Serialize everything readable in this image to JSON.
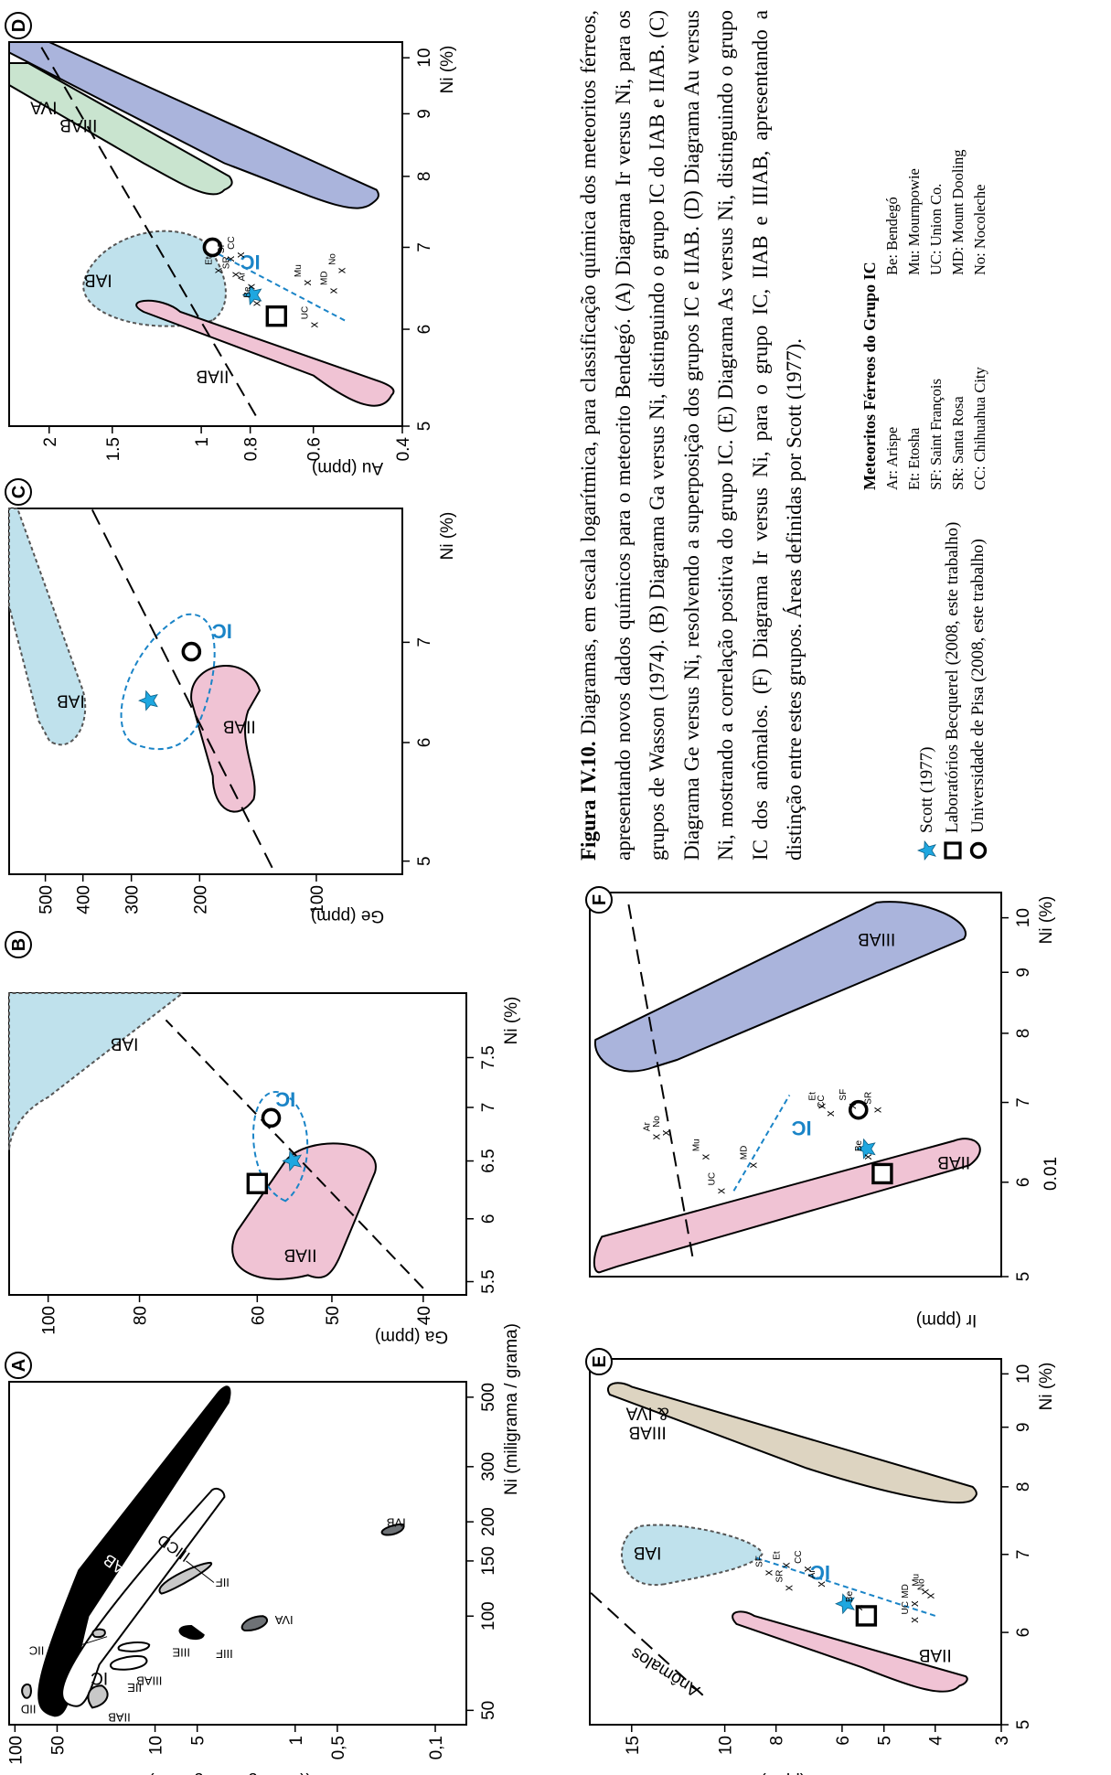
{
  "colors": {
    "iab_dark": "#000000",
    "iab_light": "#bfe1ec",
    "iiab": "#f0c3d4",
    "iiiab": "#aab4dc",
    "iva": "#c9e4cf",
    "iiiab_iva": "#ddd4c1",
    "ic": "#1a84c7",
    "star": "#1ea7e0",
    "grey": "#c8c8c8",
    "dark_grey": "#6e7276"
  },
  "legend": {
    "scott": "Scott (1977)",
    "becquerel": "Laboratórios Becquerel (2008, este trabalho)",
    "pisa": "Universidade de Pisa (2008, este trabalho)",
    "symbols": [
      "star-icon",
      "square-icon",
      "circle-icon"
    ]
  },
  "abbreviations": {
    "title": "Meteoritos Férreos do Grupo IC",
    "col1": [
      "Ar: Arispe",
      "Et: Etosha",
      "SF: Saint François",
      "SR: Santa Rosa",
      "CC: Chihuahua City"
    ],
    "col2": [
      "Be: Bendegó",
      "Mu: Mournpowie",
      "UC: Union Co.",
      "MD: Mount Dooling",
      "No: Nocoleche"
    ]
  },
  "caption": {
    "label": "Figura IV.10.",
    "text": "Diagramas, em escala logarítmica, para classificação química dos meteoritos férreos, apresentando novos dados químicos para o meteorito Bendegó. (A) Diagrama Ir versus Ni, para os grupos de Wasson (1974). (B) Diagrama Ga versus Ni, distinguindo o grupo IC do IAB e IIAB. (C) Diagrama Ge versus Ni, resolvendo a superposição dos grupos IC e IIAB. (D) Diagrama Au versus Ni, mostrando a correlação positiva do grupo IC. (E) Diagrama As versus Ni, distinguindo o grupo IC dos anômalos. (F) Diagrama Ir versus Ni, para o grupo IC, IIAB e IIIAB, apresentando a distinção entre estes grupos. Áreas definidas por Scott (1977)."
  },
  "chart_data": [
    {
      "id": "A",
      "type": "scatter",
      "xlabel": "Ni (miligrama / grama)",
      "ylabel": "Ir ((micrograma/grama)",
      "xscale": "log",
      "yscale": "log",
      "xlim": [
        45,
        560
      ],
      "ylim": [
        0.06,
        110
      ],
      "xticks": [
        50,
        100,
        150,
        200,
        300,
        500
      ],
      "yticks": [
        100,
        50,
        10,
        5,
        1,
        0.5,
        0.1
      ],
      "ytick_labels": [
        "100",
        "50",
        "10",
        "5",
        "1",
        "0,5",
        "0,1"
      ],
      "groups": [
        {
          "name": "IAB",
          "color": "#000000",
          "label": [
            140,
            22
          ]
        },
        {
          "name": "IIICD",
          "color": "#ffffff",
          "label": [
            165,
            7
          ]
        },
        {
          "name": "IIAB",
          "color": "#c8c8c8",
          "label": [
            50,
            22
          ]
        },
        {
          "name": "IIIAB",
          "color": "#ffffff",
          "label": [
            70,
            12
          ]
        },
        {
          "name": "IIE",
          "color": "#ffffff",
          "label": [
            62,
            15
          ]
        },
        {
          "name": "IIIE",
          "color": "#ffffff",
          "label": [
            79,
            7
          ]
        },
        {
          "name": "IC",
          "color": "#ffffff",
          "label": [
            68,
            28
          ]
        },
        {
          "name": "IIC",
          "color": "#c8c8c8",
          "label": [
            85,
            85
          ]
        },
        {
          "name": "IID",
          "color": "#c8c8c8",
          "label": [
            57,
            90
          ]
        },
        {
          "name": "IIF",
          "color": "#c8c8c8",
          "label": [
            128,
            5
          ]
        },
        {
          "name": "IIIF",
          "color": "#000000",
          "label": [
            90,
            3
          ]
        },
        {
          "name": "IVA",
          "color": "#6e7276",
          "label": [
            95,
            1
          ]
        },
        {
          "name": "IVB",
          "color": "#6e7276",
          "label": [
            190,
            0.15
          ]
        }
      ]
    },
    {
      "id": "B",
      "type": "scatter",
      "xlabel": "Ni (%)",
      "ylabel": "Ga (ppm)",
      "xscale": "log",
      "yscale": "log",
      "xlim": [
        5.4,
        8.2
      ],
      "ylim": [
        36,
        110
      ],
      "xticks": [
        5.5,
        6,
        6.5,
        7,
        7.5
      ],
      "yticks": [
        100,
        80,
        60,
        50,
        40
      ],
      "groups": [
        {
          "name": "IAB",
          "label": [
            7.7,
            80
          ]
        },
        {
          "name": "IIAB",
          "label": [
            5.7,
            50
          ]
        },
        {
          "name": "IC",
          "label": [
            7.1,
            58
          ]
        }
      ],
      "points": [
        {
          "series": "Scott (1977)",
          "x": 6.5,
          "y": 55
        },
        {
          "series": "Laboratórios Becquerel (2008, este trabalho)",
          "x": 6.3,
          "y": 60
        },
        {
          "series": "Universidade de Pisa (2008, este trabalho)",
          "x": 6.9,
          "y": 58
        }
      ]
    },
    {
      "id": "C",
      "type": "scatter",
      "xlabel": "Ni (%)",
      "ylabel": "Ge (ppm)",
      "xscale": "log",
      "yscale": "log",
      "xlim": [
        4.9,
        8.6
      ],
      "ylim": [
        60,
        620
      ],
      "xticks": [
        5,
        6,
        7
      ],
      "yticks": [
        500,
        400,
        300,
        200,
        100
      ],
      "groups": [
        {
          "name": "IAB",
          "label": [
            6.4,
            420
          ]
        },
        {
          "name": "IIAB",
          "label": [
            6.2,
            150
          ]
        },
        {
          "name": "IC",
          "label": [
            7.2,
            180
          ]
        }
      ],
      "points": [
        {
          "series": "Scott (1977)",
          "x": 6.4,
          "y": 270
        },
        {
          "series": "Universidade de Pisa (2008, este trabalho)",
          "x": 6.9,
          "y": 210
        }
      ]
    },
    {
      "id": "D",
      "type": "scatter",
      "xlabel": "Ni (%)",
      "ylabel": "Au (ppm)",
      "xscale": "log",
      "yscale": "log",
      "xlim": [
        5,
        10.3
      ],
      "ylim": [
        0.4,
        2.4
      ],
      "xticks": [
        5,
        6,
        7,
        8,
        9,
        10
      ],
      "yticks": [
        2,
        1.5,
        1,
        0.8,
        0.6,
        0.4
      ],
      "groups": [
        {
          "name": "IAB",
          "label": [
            6.8,
            1.6
          ]
        },
        {
          "name": "IIAB",
          "label": [
            5.5,
            1.0
          ]
        },
        {
          "name": "IIIAB",
          "label": [
            8.7,
            1.7
          ]
        },
        {
          "name": "IVA",
          "label": [
            9.4,
            2.0
          ]
        },
        {
          "name": "IC",
          "label": [
            6.8,
            0.8
          ]
        }
      ],
      "points": [
        {
          "series": "Scott (1977)",
          "x": 6.4,
          "y": 0.79
        },
        {
          "series": "Laboratórios Becquerel (2008, este trabalho)",
          "x": 6.15,
          "y": 0.71
        },
        {
          "series": "Universidade de Pisa (2008, este trabalho)",
          "x": 7.0,
          "y": 0.95
        },
        {
          "series": "Et",
          "x": 6.7,
          "y": 0.93
        },
        {
          "series": "SF",
          "x": 6.85,
          "y": 0.88
        },
        {
          "series": "SR",
          "x": 6.65,
          "y": 0.86
        },
        {
          "series": "CC",
          "x": 6.9,
          "y": 0.84
        },
        {
          "series": "Ar",
          "x": 6.5,
          "y": 0.8
        },
        {
          "series": "Be",
          "x": 6.3,
          "y": 0.78
        },
        {
          "series": "Mu",
          "x": 6.55,
          "y": 0.62
        },
        {
          "series": "UC",
          "x": 6.05,
          "y": 0.6
        },
        {
          "series": "MD",
          "x": 6.45,
          "y": 0.55
        },
        {
          "series": "No",
          "x": 6.7,
          "y": 0.53
        }
      ]
    },
    {
      "id": "E",
      "type": "scatter",
      "xlabel": "Ni (%)",
      "ylabel": "As (ppm)",
      "xscale": "log",
      "yscale": "log",
      "xlim": [
        5,
        10.3
      ],
      "ylim": [
        3,
        18
      ],
      "xticks": [
        5,
        6,
        7,
        8,
        9,
        10
      ],
      "yticks": [
        15,
        10,
        8,
        6,
        5,
        4,
        3
      ],
      "groups": [
        {
          "name": "IAB",
          "label": [
            7.2,
            14
          ]
        },
        {
          "name": "IIAB",
          "label": [
            6.0,
            3.9
          ]
        },
        {
          "name": "IIIAB & IVA",
          "label": [
            9.5,
            14
          ]
        },
        {
          "name": "IC",
          "label": [
            6.8,
            7
          ]
        },
        {
          "name": "Anômalos",
          "label": [
            5.6,
            13
          ]
        }
      ],
      "points": [
        {
          "series": "Scott (1977)",
          "x": 6.35,
          "y": 5.9
        },
        {
          "series": "Laboratórios Becquerel (2008, este trabalho)",
          "x": 6.2,
          "y": 5.4
        },
        {
          "series": "SF",
          "x": 6.75,
          "y": 8.3
        },
        {
          "series": "SR",
          "x": 6.55,
          "y": 7.6
        },
        {
          "series": "Et",
          "x": 6.85,
          "y": 7.7
        },
        {
          "series": "CC",
          "x": 6.8,
          "y": 7.0
        },
        {
          "series": "Ar",
          "x": 6.6,
          "y": 6.6
        },
        {
          "series": "Be",
          "x": 6.3,
          "y": 5.6
        },
        {
          "series": "UC",
          "x": 6.15,
          "y": 4.4
        },
        {
          "series": "MD",
          "x": 6.35,
          "y": 4.4
        },
        {
          "series": "Mu",
          "x": 6.5,
          "y": 4.2
        },
        {
          "series": "No",
          "x": 6.45,
          "y": 4.1
        }
      ]
    },
    {
      "id": "F",
      "type": "scatter",
      "xlabel": "Ni (%)",
      "ylabel": "Ir (ppm)",
      "xscale": "log",
      "yscale": "log",
      "xlim": [
        5,
        10.5
      ],
      "xticks": [
        5,
        6,
        7,
        8,
        9,
        10
      ],
      "ytick_labels": [
        "0.01"
      ],
      "groups": [
        {
          "name": "IIAB",
          "label": [
            6.35,
            0.015
          ]
        },
        {
          "name": "IIIAB",
          "label": [
            9.4,
            0.05
          ]
        },
        {
          "name": "IC",
          "label": [
            6.8,
            0.2
          ]
        }
      ],
      "points": [
        {
          "series": "Scott (1977)",
          "x": 6.4,
          "y": 0.06
        },
        {
          "series": "Laboratórios Becquerel (2008, este trabalho)",
          "x": 6.1,
          "y": 0.045
        },
        {
          "series": "Universidade de Pisa (2008, este trabalho)",
          "x": 6.9,
          "y": 0.07
        },
        {
          "series": "Ar",
          "x": 6.55,
          "y": 3
        },
        {
          "series": "No",
          "x": 6.6,
          "y": 2.5
        },
        {
          "series": "Mu",
          "x": 6.3,
          "y": 1.2
        },
        {
          "series": "UC",
          "x": 5.9,
          "y": 0.9
        },
        {
          "series": "MD",
          "x": 6.2,
          "y": 0.5
        },
        {
          "series": "Be",
          "x": 6.3,
          "y": 0.06
        },
        {
          "series": "CC",
          "x": 6.85,
          "y": 0.12
        },
        {
          "series": "Et",
          "x": 6.95,
          "y": 0.14
        },
        {
          "series": "SF",
          "x": 6.95,
          "y": 0.08
        },
        {
          "series": "SR",
          "x": 6.9,
          "y": 0.05
        }
      ]
    }
  ]
}
